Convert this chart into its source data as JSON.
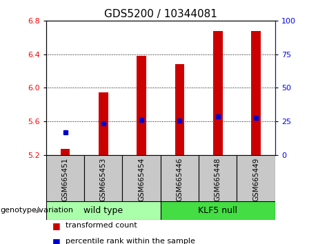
{
  "title": "GDS5200 / 10344081",
  "samples": [
    "GSM665451",
    "GSM665453",
    "GSM665454",
    "GSM665446",
    "GSM665448",
    "GSM665449"
  ],
  "bar_values": [
    5.27,
    5.95,
    6.38,
    6.28,
    6.68,
    6.68
  ],
  "bar_base": 5.2,
  "percentile_values": [
    5.47,
    5.575,
    5.615,
    5.61,
    5.655,
    5.645
  ],
  "bar_color": "#cc0000",
  "percentile_color": "#0000cc",
  "ylim": [
    5.2,
    6.8
  ],
  "y_ticks_left": [
    5.2,
    5.6,
    6.0,
    6.4,
    6.8
  ],
  "y_ticks_right": [
    0,
    25,
    50,
    75,
    100
  ],
  "groups": [
    {
      "label": "wild type",
      "color": "#aaffaa",
      "start": 0,
      "end": 3
    },
    {
      "label": "KLF5 null",
      "color": "#44dd44",
      "start": 3,
      "end": 6
    }
  ],
  "genotype_label": "genotype/variation",
  "legend_items": [
    {
      "label": "transformed count",
      "color": "#cc0000"
    },
    {
      "label": "percentile rank within the sample",
      "color": "#0000cc"
    }
  ],
  "title_fontsize": 11,
  "tick_fontsize": 8,
  "bar_width": 0.25,
  "xlabel_bg": "#c8c8c8",
  "xlabel_fontsize": 7.5,
  "group_fontsize": 9,
  "legend_fontsize": 8,
  "genotype_fontsize": 8
}
